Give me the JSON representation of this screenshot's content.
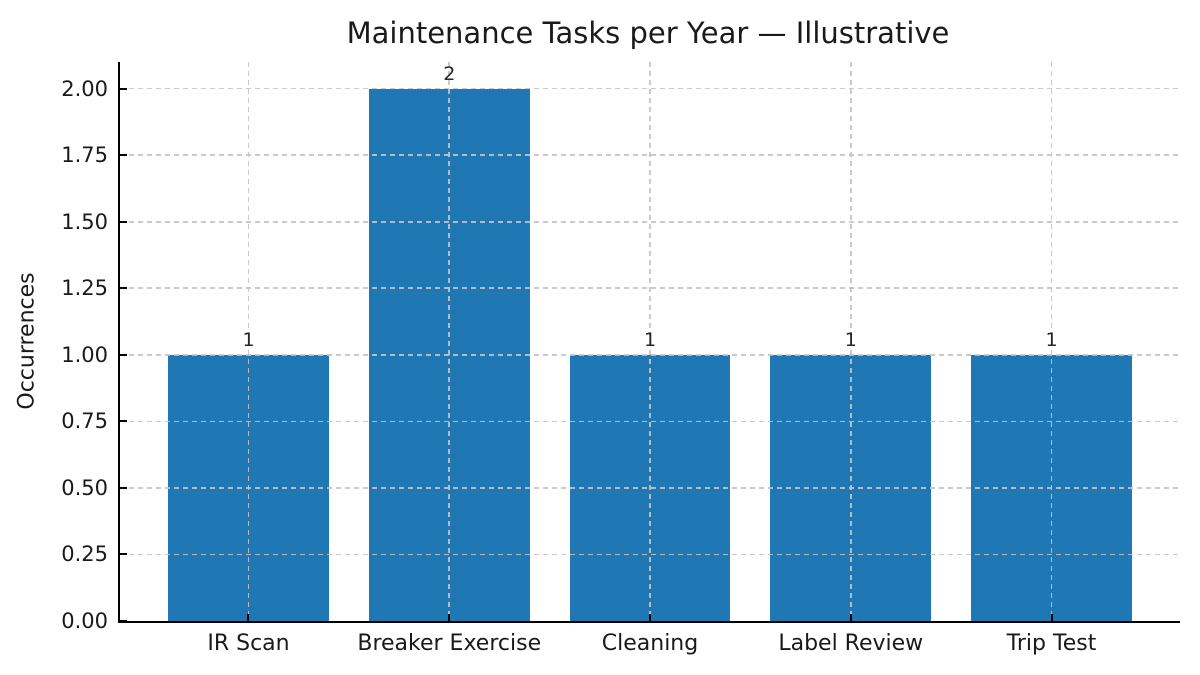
{
  "chart_data": {
    "type": "bar",
    "title": "Maintenance Tasks per Year — Illustrative",
    "ylabel": "Occurrences",
    "xlabel": "",
    "categories": [
      "IR Scan",
      "Breaker Exercise",
      "Cleaning",
      "Label Review",
      "Trip Test"
    ],
    "values": [
      1,
      2,
      1,
      1,
      1
    ],
    "bar_value_labels": [
      "1",
      "2",
      "1",
      "1",
      "1"
    ],
    "ytick_values": [
      0,
      0.25,
      0.5,
      0.75,
      1,
      1.25,
      1.5,
      1.75,
      2
    ],
    "ytick_labels": [
      "0.00",
      "0.25",
      "0.50",
      "0.75",
      "1.00",
      "1.25",
      "1.50",
      "1.75",
      "2.00"
    ],
    "ylim": [
      0,
      2.1
    ],
    "grid": true,
    "grid_style": "dashed",
    "legend_position": "none",
    "colors": {
      "bar": "#1f77b4",
      "grid": "#c4c4c4",
      "axis": "#000000",
      "text": "#1a1a1a"
    }
  }
}
